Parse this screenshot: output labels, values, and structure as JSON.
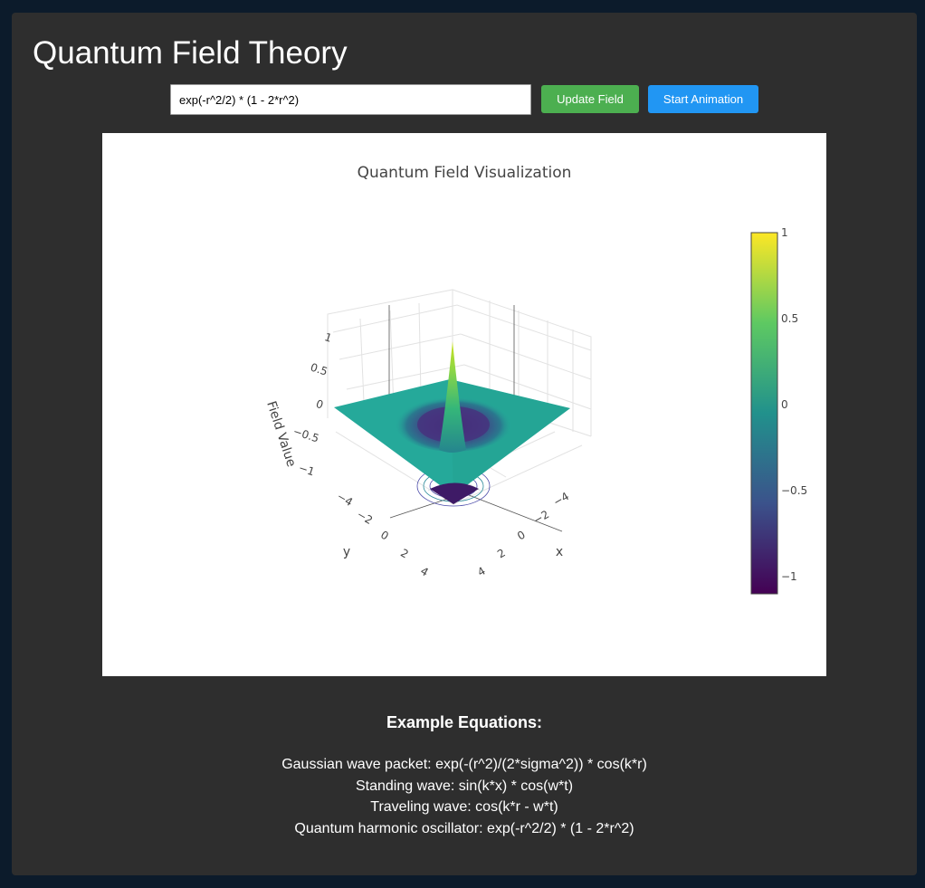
{
  "app": {
    "title": "Quantum Field Theory"
  },
  "controls": {
    "equation_value": "exp(-r^2/2) * (1 - 2*r^2)",
    "update_label": "Update Field",
    "animation_label": "Start Animation"
  },
  "colors": {
    "page_background": "#0c1b2b",
    "panel_background": "#2e2e2e",
    "update_button": "#4caf50",
    "animation_button": "#2196f3",
    "colorscale": [
      "#440154",
      "#3b528b",
      "#21918c",
      "#5ec962",
      "#fde725"
    ]
  },
  "chart_data": {
    "type": "surface",
    "title": "Quantum Field Visualization",
    "xlabel": "x",
    "ylabel": "y",
    "zlabel": "Field Value",
    "function": "exp(-r^2/2) * (1 - 2*r^2)",
    "x_range": [
      -5,
      5
    ],
    "y_range": [
      -5,
      5
    ],
    "z_range": [
      -1.1,
      1
    ],
    "x_ticks": [
      "−4",
      "−2",
      "0",
      "2",
      "4"
    ],
    "y_ticks": [
      "−4",
      "−2",
      "0",
      "2",
      "4"
    ],
    "z_ticks": [
      "−1",
      "−0.5",
      "0",
      "0.5",
      "1"
    ],
    "colorbar": {
      "range": [
        -1.1,
        1
      ],
      "ticks": [
        "1",
        "0.5",
        "0",
        "−0.5",
        "−1"
      ],
      "colorscale": "Viridis"
    },
    "contours_projected": true
  },
  "examples": {
    "heading": "Example Equations:",
    "items": [
      "Gaussian wave packet: exp(-(r^2)/(2*sigma^2)) * cos(k*r)",
      "Standing wave: sin(k*x) * cos(w*t)",
      "Traveling wave: cos(k*r - w*t)",
      "Quantum harmonic oscillator: exp(-r^2/2) * (1 - 2*r^2)"
    ]
  }
}
